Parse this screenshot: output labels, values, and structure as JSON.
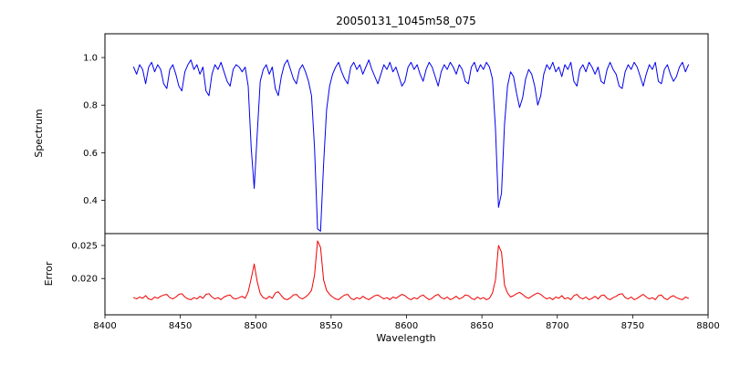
{
  "chart_data": {
    "type": "line",
    "title": "20050131_1045m58_075",
    "xlabel": "Wavelength",
    "xlim": [
      8400,
      8800
    ],
    "xticks": [
      8400,
      8450,
      8500,
      8550,
      8600,
      8650,
      8700,
      8750,
      8800
    ],
    "x_start": 8419,
    "x_step": 2,
    "grid": false,
    "legend": "none",
    "panels": [
      {
        "ylabel": "Spectrum",
        "ylim": [
          0.26,
          1.1
        ],
        "yticks": [
          0.4,
          0.6,
          0.8,
          1.0
        ],
        "ytick_labels": [
          "0.4",
          "0.6",
          "0.8",
          "1.0"
        ],
        "color": "#0000ee",
        "series_name": "normalized-spectrum",
        "values": [
          0.96,
          0.93,
          0.97,
          0.95,
          0.89,
          0.96,
          0.98,
          0.94,
          0.97,
          0.95,
          0.89,
          0.87,
          0.95,
          0.97,
          0.93,
          0.88,
          0.86,
          0.94,
          0.97,
          0.99,
          0.95,
          0.97,
          0.93,
          0.96,
          0.86,
          0.84,
          0.93,
          0.97,
          0.95,
          0.98,
          0.94,
          0.9,
          0.88,
          0.95,
          0.97,
          0.96,
          0.94,
          0.96,
          0.88,
          0.62,
          0.45,
          0.68,
          0.9,
          0.95,
          0.97,
          0.93,
          0.96,
          0.87,
          0.84,
          0.92,
          0.97,
          0.99,
          0.95,
          0.91,
          0.89,
          0.95,
          0.97,
          0.94,
          0.9,
          0.84,
          0.62,
          0.28,
          0.27,
          0.55,
          0.78,
          0.88,
          0.93,
          0.96,
          0.98,
          0.94,
          0.91,
          0.89,
          0.96,
          0.98,
          0.95,
          0.97,
          0.93,
          0.96,
          0.99,
          0.95,
          0.92,
          0.89,
          0.93,
          0.97,
          0.95,
          0.98,
          0.94,
          0.96,
          0.92,
          0.88,
          0.9,
          0.96,
          0.98,
          0.95,
          0.97,
          0.93,
          0.9,
          0.95,
          0.98,
          0.96,
          0.92,
          0.88,
          0.94,
          0.97,
          0.95,
          0.98,
          0.96,
          0.93,
          0.97,
          0.95,
          0.9,
          0.89,
          0.96,
          0.98,
          0.94,
          0.97,
          0.95,
          0.98,
          0.96,
          0.91,
          0.7,
          0.37,
          0.43,
          0.72,
          0.88,
          0.94,
          0.92,
          0.85,
          0.79,
          0.83,
          0.91,
          0.95,
          0.93,
          0.88,
          0.8,
          0.84,
          0.93,
          0.97,
          0.95,
          0.98,
          0.94,
          0.96,
          0.92,
          0.97,
          0.95,
          0.98,
          0.9,
          0.88,
          0.95,
          0.97,
          0.94,
          0.98,
          0.96,
          0.93,
          0.96,
          0.9,
          0.89,
          0.95,
          0.98,
          0.95,
          0.93,
          0.88,
          0.87,
          0.94,
          0.97,
          0.95,
          0.98,
          0.96,
          0.92,
          0.88,
          0.93,
          0.97,
          0.95,
          0.98,
          0.9,
          0.89,
          0.95,
          0.97,
          0.93,
          0.9,
          0.92,
          0.96,
          0.98,
          0.94,
          0.97
        ]
      },
      {
        "ylabel": "Error",
        "ylim": [
          0.0145,
          0.0268
        ],
        "yticks": [
          0.02,
          0.025
        ],
        "ytick_labels": [
          "0.020",
          "0.025"
        ],
        "color": "#ee0000",
        "series_name": "error-spectrum",
        "values": [
          0.0171,
          0.0169,
          0.0172,
          0.017,
          0.0174,
          0.0169,
          0.0168,
          0.0172,
          0.017,
          0.0173,
          0.0175,
          0.0176,
          0.0171,
          0.0169,
          0.0172,
          0.0176,
          0.0177,
          0.0172,
          0.0169,
          0.0168,
          0.0171,
          0.0169,
          0.0173,
          0.017,
          0.0176,
          0.0177,
          0.0172,
          0.0169,
          0.0171,
          0.0168,
          0.0172,
          0.0174,
          0.0175,
          0.017,
          0.0169,
          0.0171,
          0.0173,
          0.017,
          0.018,
          0.02,
          0.0222,
          0.0195,
          0.0177,
          0.0171,
          0.0169,
          0.0173,
          0.017,
          0.0178,
          0.018,
          0.0174,
          0.0169,
          0.0168,
          0.0171,
          0.0175,
          0.0176,
          0.0171,
          0.0169,
          0.0172,
          0.0176,
          0.0182,
          0.0205,
          0.0257,
          0.0247,
          0.0198,
          0.0182,
          0.0176,
          0.0172,
          0.0169,
          0.0168,
          0.0172,
          0.0175,
          0.0176,
          0.017,
          0.0168,
          0.0171,
          0.0169,
          0.0173,
          0.017,
          0.0168,
          0.0171,
          0.0174,
          0.0175,
          0.0172,
          0.0169,
          0.0171,
          0.0168,
          0.0172,
          0.017,
          0.0173,
          0.0176,
          0.0174,
          0.017,
          0.0168,
          0.0171,
          0.0169,
          0.0173,
          0.0175,
          0.0171,
          0.0168,
          0.017,
          0.0174,
          0.0176,
          0.0171,
          0.0169,
          0.0172,
          0.0168,
          0.017,
          0.0173,
          0.0169,
          0.0171,
          0.0175,
          0.0174,
          0.017,
          0.0168,
          0.0172,
          0.0169,
          0.0171,
          0.0168,
          0.017,
          0.0178,
          0.0198,
          0.025,
          0.024,
          0.019,
          0.0178,
          0.0172,
          0.0174,
          0.0177,
          0.0179,
          0.0176,
          0.0172,
          0.017,
          0.0173,
          0.0176,
          0.0178,
          0.0176,
          0.0172,
          0.0169,
          0.0171,
          0.0168,
          0.0172,
          0.017,
          0.0174,
          0.0169,
          0.0171,
          0.0168,
          0.0174,
          0.0176,
          0.0171,
          0.0169,
          0.0172,
          0.0168,
          0.017,
          0.0173,
          0.0169,
          0.0174,
          0.0175,
          0.017,
          0.0168,
          0.0171,
          0.0173,
          0.0176,
          0.0177,
          0.0171,
          0.0169,
          0.0172,
          0.0168,
          0.017,
          0.0173,
          0.0176,
          0.0172,
          0.0169,
          0.0171,
          0.0168,
          0.0174,
          0.0175,
          0.017,
          0.0168,
          0.0172,
          0.0174,
          0.0171,
          0.0169,
          0.0168,
          0.0172,
          0.017
        ]
      }
    ]
  }
}
